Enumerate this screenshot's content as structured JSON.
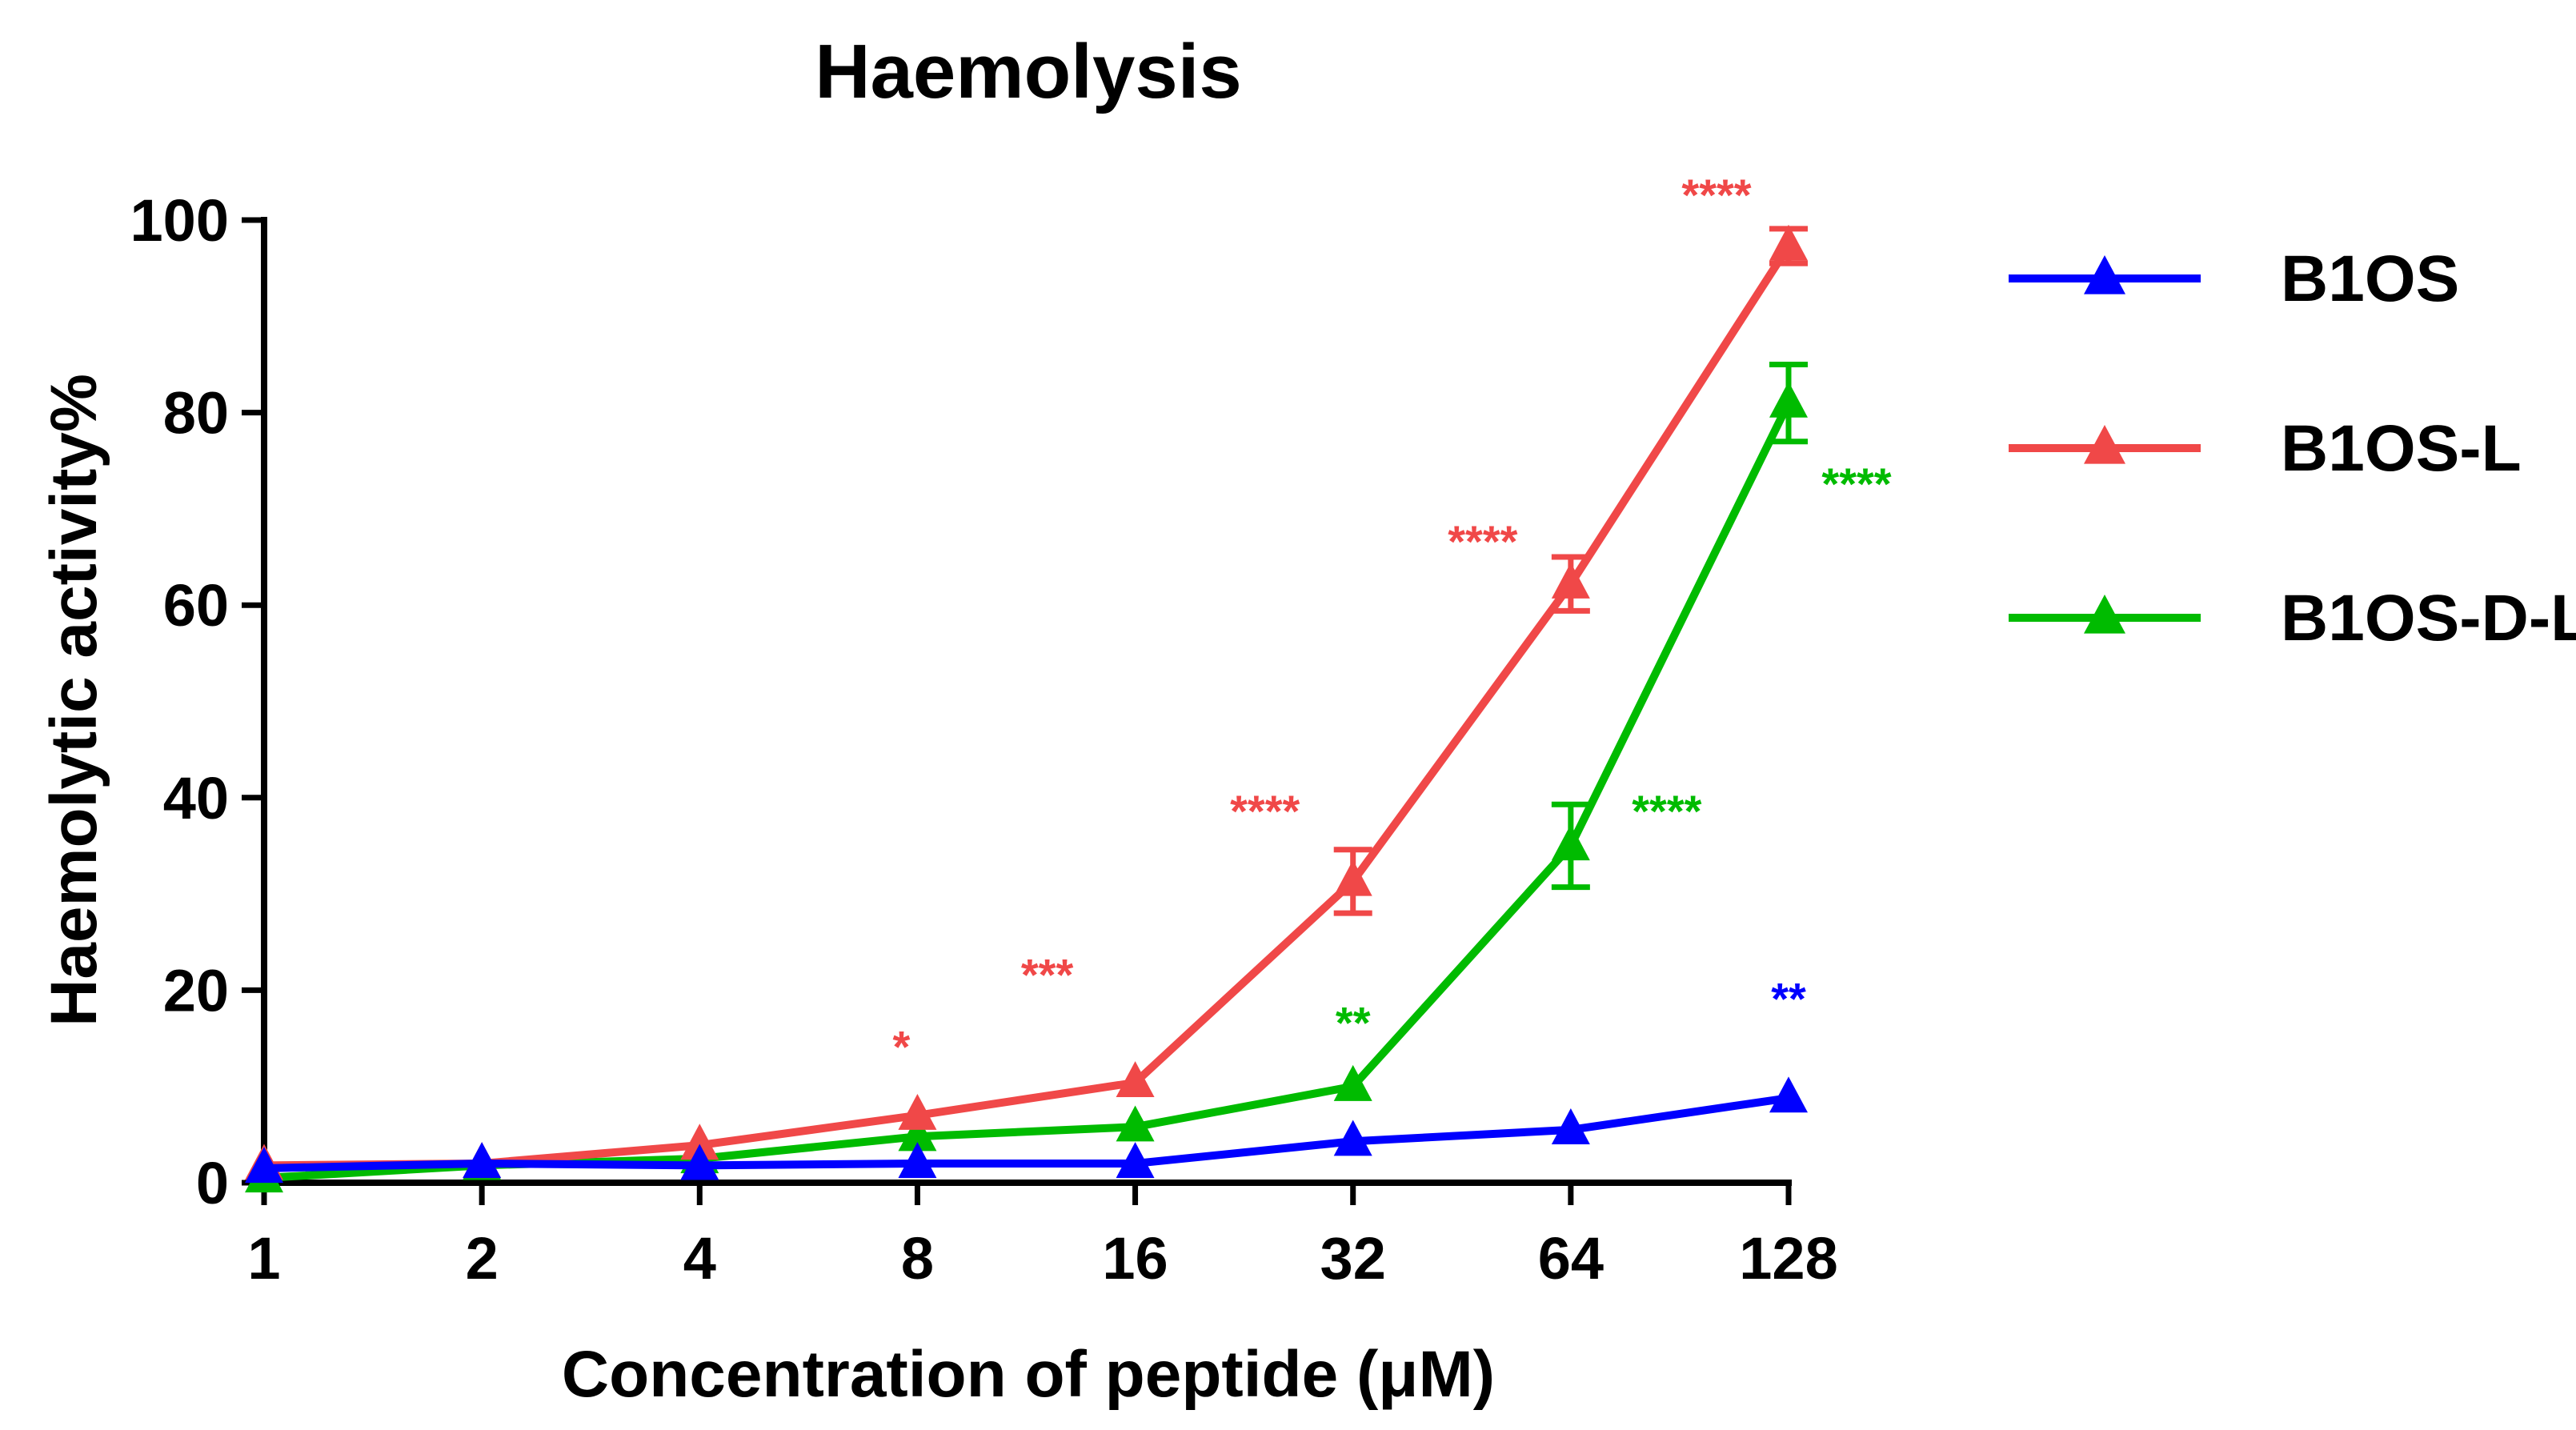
{
  "chart_data": {
    "type": "line",
    "title": "Haemolysis",
    "xlabel": "Concentration of peptide (μM)",
    "ylabel": "Haemolytic activity%",
    "x_scale": "log2",
    "categories": [
      "1",
      "2",
      "4",
      "8",
      "16",
      "32",
      "64",
      "128"
    ],
    "x": [
      1,
      2,
      4,
      8,
      16,
      32,
      64,
      128
    ],
    "ylim": [
      0,
      100
    ],
    "yticks": [
      0,
      20,
      40,
      60,
      80,
      100
    ],
    "legend_position": "right",
    "series": [
      {
        "name": "B1OS",
        "color": "#0000ff",
        "marker": "triangle",
        "values": [
          1.5,
          2.0,
          1.8,
          2.0,
          2.0,
          4.3,
          5.5,
          8.8
        ],
        "errors": [
          0.3,
          0.3,
          0.3,
          0.3,
          0.3,
          0.5,
          0.5,
          0.6
        ],
        "significance": [
          {
            "x": 128,
            "label": "**",
            "y_anchor": 17.5
          }
        ]
      },
      {
        "name": "B1OS-L",
        "color": "#f04848",
        "marker": "triangle",
        "values": [
          1.8,
          2.0,
          3.9,
          7.0,
          10.4,
          31.3,
          62.2,
          97.3
        ],
        "errors": [
          0.3,
          0.3,
          0.5,
          0.6,
          0.8,
          3.3,
          2.8,
          1.8
        ],
        "significance": [
          {
            "x": 8,
            "label": "*",
            "y_anchor": 12.5
          },
          {
            "x": 16,
            "label": "***",
            "y_anchor": 20.0
          },
          {
            "x": 32,
            "label": "****",
            "y_anchor": 37.0
          },
          {
            "x": 64,
            "label": "****",
            "y_anchor": 65.0
          },
          {
            "x": 128,
            "label": "****",
            "y_anchor": 101.0
          }
        ]
      },
      {
        "name": "B1OS-D-L",
        "color": "#00bb00",
        "marker": "triangle",
        "values": [
          0.5,
          1.8,
          2.5,
          4.8,
          5.8,
          10.0,
          35.0,
          81.0
        ],
        "errors": [
          0.3,
          0.3,
          0.3,
          0.5,
          0.5,
          0.8,
          4.3,
          4.0
        ],
        "significance": [
          {
            "x": 32,
            "label": "**",
            "y_anchor": 15.0
          },
          {
            "x": 64,
            "label": "****",
            "y_anchor": 37.0
          },
          {
            "x": 128,
            "label": "****",
            "y_anchor": 71.0
          }
        ]
      }
    ]
  }
}
